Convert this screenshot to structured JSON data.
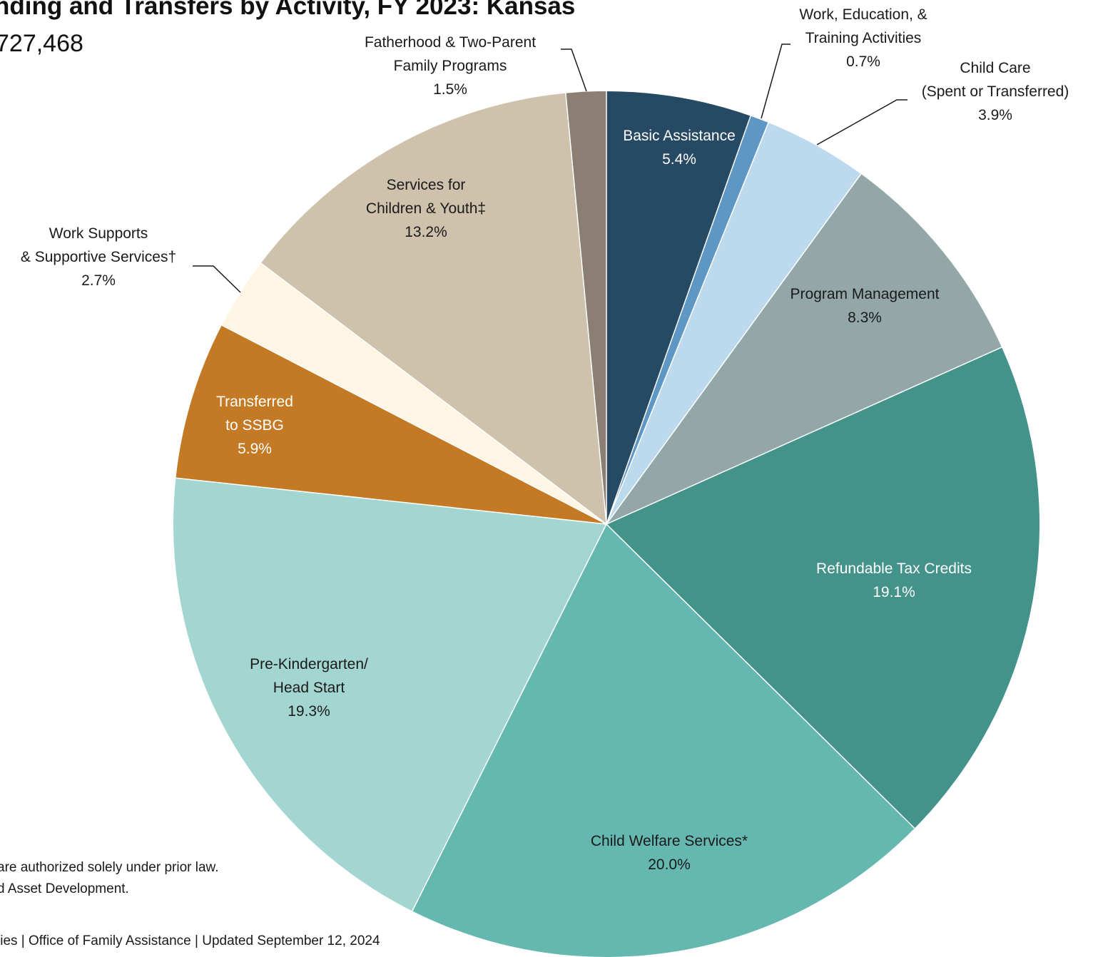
{
  "chart_data": {
    "type": "pie",
    "title": "nding and Transfers by Activity, FY 2023: Kansas",
    "subtitle": "727,468",
    "footnotes": [
      "are authorized solely under prior law.",
      "d Asset Development.",
      "lies | Office of Family Assistance | Updated September 12, 2024"
    ],
    "categories": [
      [
        "Basic Assistance"
      ],
      [
        "Work, Education, &",
        "Training Activities"
      ],
      [
        "Child Care",
        "(Spent or Transferred)"
      ],
      [
        "Program Management"
      ],
      [
        "Refundable Tax Credits"
      ],
      [
        "Child Welfare Services*"
      ],
      [
        "Pre-Kindergarten/",
        "Head Start"
      ],
      [
        "Transferred",
        "to SSBG"
      ],
      [
        "Work Supports",
        "& Supportive Services†"
      ],
      [
        "Services for",
        "Children & Youth‡"
      ],
      [
        "Fatherhood & Two-Parent",
        "Family Programs"
      ]
    ],
    "values": [
      5.4,
      0.7,
      3.9,
      8.3,
      19.1,
      20.0,
      19.3,
      5.9,
      2.7,
      13.2,
      1.5
    ],
    "value_labels": [
      "5.4%",
      "0.7%",
      "3.9%",
      "8.3%",
      "19.1%",
      "20.0%",
      "19.3%",
      "5.9%",
      "2.7%",
      "13.2%",
      "1.5%"
    ],
    "colors": [
      "#264a63",
      "#5f97c4",
      "#bdd9ee",
      "#93a7a9",
      "#43938b",
      "#64b8b0",
      "#a3d6d1",
      "#c47a24",
      "#fef5e5",
      "#cfc2ac",
      "#8a7f72"
    ]
  }
}
